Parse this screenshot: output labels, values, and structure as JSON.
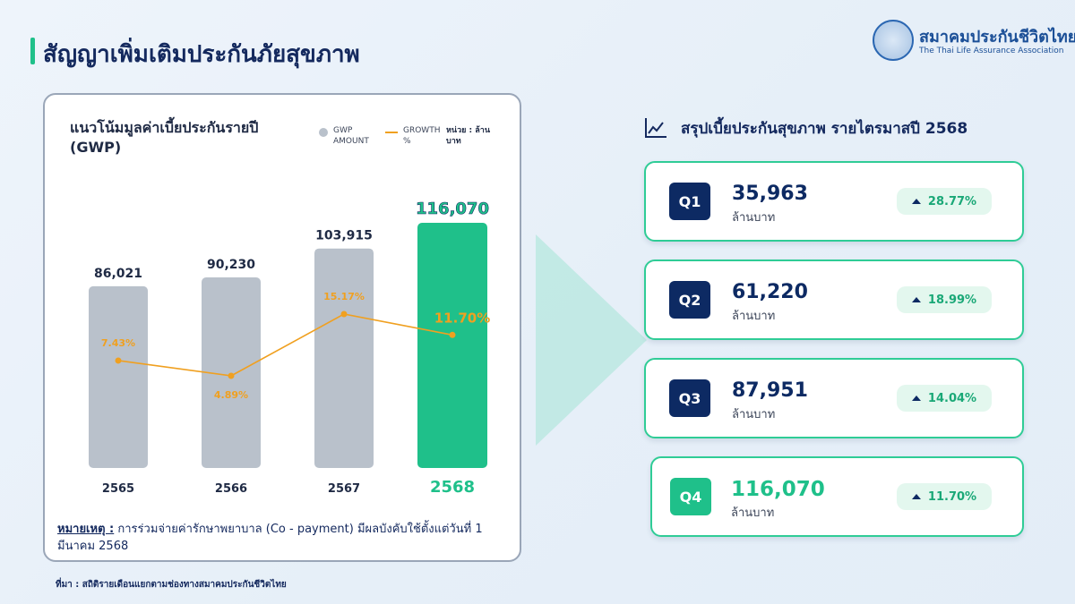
{
  "page": {
    "title": "สัญญาเพิ่มเติมประกันภัยสุขภาพ",
    "logo_name": "สมาคมประกันชีวิตไทย",
    "logo_en": "The Thai Life Assurance Association",
    "source": "ที่มา : สถิติรายเดือนแยกตามช่องทางสมาคมประกันชีวิตไทย"
  },
  "chart_card": {
    "title": "แนวโน้มมูลค่าเบี้ยประกันรายปี (GWP)",
    "legend_gwp": "GWP AMOUNT",
    "legend_growth": "GROWTH %",
    "unit": "หน่วย : ล้านบาท",
    "note_key": "หมายเหตุ :",
    "note_text": " การร่วมจ่ายค่ารักษาพยาบาล (Co - payment) มีผลบังคับใช้ตั้งแต่วันที่ 1 มีนาคม 2568"
  },
  "chart_data": {
    "type": "bar",
    "categories": [
      "2565",
      "2566",
      "2567",
      "2568"
    ],
    "series": [
      {
        "name": "GWP AMOUNT",
        "values": [
          86021,
          90230,
          103915,
          116070
        ],
        "labels": [
          "86,021",
          "90,230",
          "103,915",
          "116,070"
        ]
      },
      {
        "name": "GROWTH %",
        "values": [
          7.43,
          4.89,
          15.17,
          11.7
        ],
        "labels": [
          "7.43%",
          "4.89%",
          "15.17%",
          "11.70%"
        ]
      }
    ],
    "highlight_category": "2568",
    "colors": {
      "bar": "#b9c1cb",
      "bar_highlight": "#1fc08a",
      "line": "#f0a020"
    },
    "legend_position": "top-right",
    "grid": false
  },
  "summary": {
    "title": "สรุปเบี้ยประกันสุขภาพ รายไตรมาสปี 2568",
    "icon": "chart-trend-icon",
    "unit": "ล้านบาท",
    "quarters": [
      {
        "label": "Q1",
        "value": "35,963",
        "growth": "28.77%"
      },
      {
        "label": "Q2",
        "value": "61,220",
        "growth": "18.99%"
      },
      {
        "label": "Q3",
        "value": "87,951",
        "growth": "14.04%"
      },
      {
        "label": "Q4",
        "value": "116,070",
        "growth": "11.70%"
      }
    ]
  }
}
